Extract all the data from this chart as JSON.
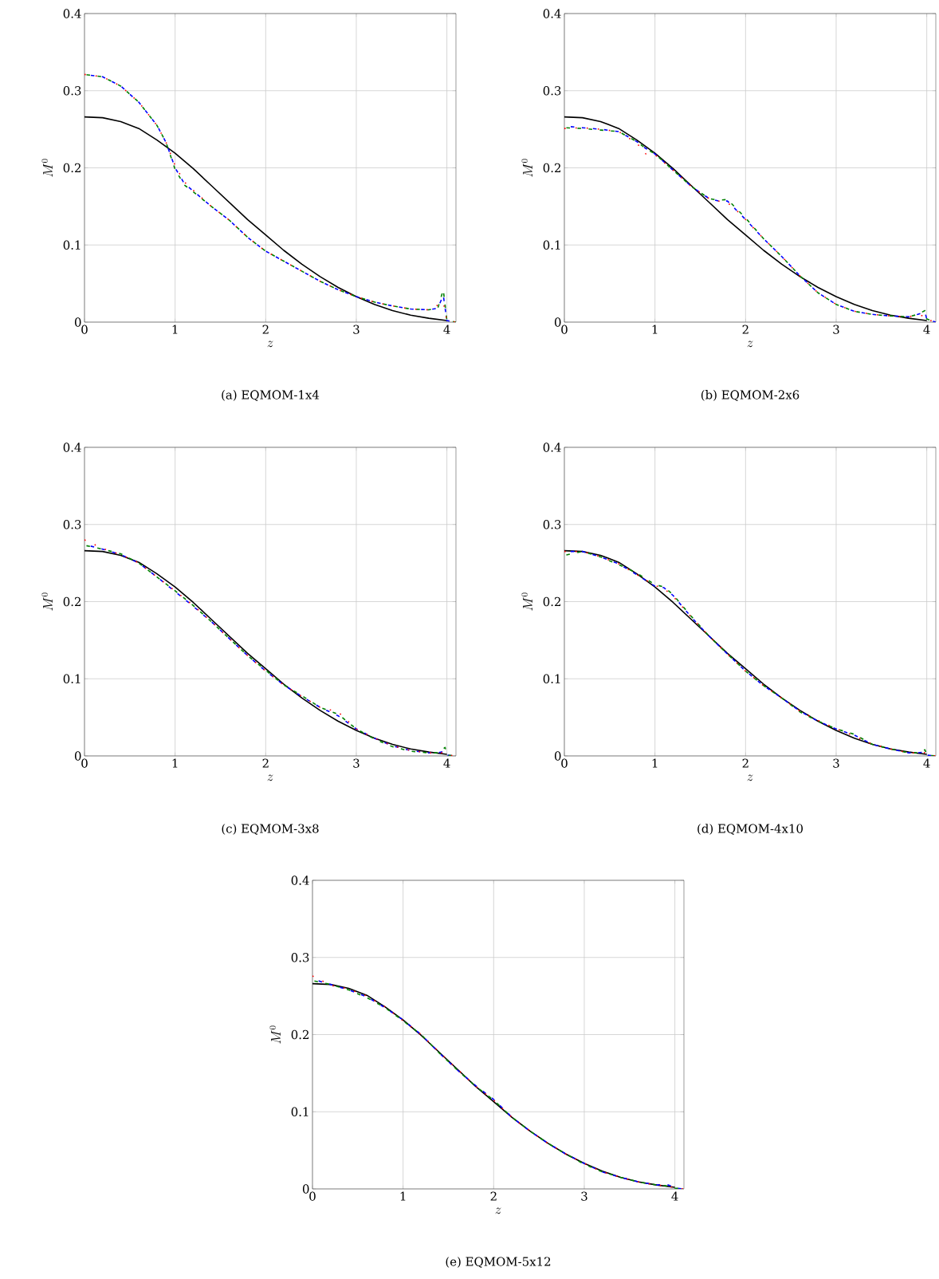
{
  "chart_data": [
    {
      "type": "line",
      "title": "(a) EQMOM-1x4",
      "xlabel": "z",
      "ylabel": "M^{0}",
      "xlim": [
        0,
        4.1
      ],
      "ylim": [
        0,
        0.4
      ],
      "xticks": [
        0,
        1,
        2,
        3,
        4
      ],
      "yticks": [
        0,
        0.1,
        0.2,
        0.3,
        0.4
      ],
      "grid": true,
      "x": [
        0,
        0.2,
        0.4,
        0.6,
        0.8,
        0.9,
        1.0,
        1.1,
        1.2,
        1.4,
        1.6,
        1.8,
        2.0,
        2.2,
        2.4,
        2.6,
        2.8,
        3.0,
        3.2,
        3.4,
        3.6,
        3.8,
        3.9,
        3.96,
        4.0,
        4.1
      ],
      "series": [
        {
          "color": "#000000",
          "line_style": "solid",
          "x": [
            0,
            0.2,
            0.4,
            0.6,
            0.8,
            1.0,
            1.2,
            1.4,
            1.6,
            1.8,
            2.0,
            2.2,
            2.4,
            2.6,
            2.8,
            3.0,
            3.2,
            3.4,
            3.6,
            3.8,
            4.0
          ],
          "values": [
            0.266,
            0.265,
            0.26,
            0.251,
            0.236,
            0.219,
            0.199,
            0.177,
            0.155,
            0.133,
            0.113,
            0.093,
            0.075,
            0.059,
            0.045,
            0.033,
            0.023,
            0.015,
            0.009,
            0.005,
            0.002
          ]
        },
        {
          "color": "#ff0000",
          "line_style": "dotted",
          "values": [
            0.321,
            0.318,
            0.306,
            0.285,
            0.255,
            0.233,
            0.203,
            0.182,
            0.171,
            0.15,
            0.132,
            0.11,
            0.092,
            0.079,
            0.066,
            0.053,
            0.042,
            0.033,
            0.026,
            0.021,
            0.017,
            0.016,
            0.022,
            0.026,
            0.002,
            0
          ]
        },
        {
          "color": "#0000ff",
          "line_style": "dashed",
          "values": [
            0.321,
            0.318,
            0.306,
            0.285,
            0.255,
            0.233,
            0.2,
            0.18,
            0.17,
            0.15,
            0.132,
            0.11,
            0.092,
            0.079,
            0.066,
            0.053,
            0.042,
            0.033,
            0.026,
            0.021,
            0.017,
            0.016,
            0.018,
            0.035,
            0.002,
            0
          ]
        },
        {
          "color": "#008000",
          "line_style": "dashed",
          "values": [
            0.321,
            0.318,
            0.306,
            0.285,
            0.255,
            0.233,
            0.198,
            0.178,
            0.169,
            0.15,
            0.132,
            0.11,
            0.092,
            0.079,
            0.066,
            0.053,
            0.042,
            0.033,
            0.026,
            0.021,
            0.017,
            0.016,
            0.018,
            0.042,
            0.002,
            0
          ]
        }
      ]
    },
    {
      "type": "line",
      "title": "(b) EQMOM-2x6",
      "xlabel": "z",
      "ylabel": "M^{0}",
      "xlim": [
        0,
        4.1
      ],
      "ylim": [
        0,
        0.4
      ],
      "xticks": [
        0,
        1,
        2,
        3,
        4
      ],
      "yticks": [
        0,
        0.1,
        0.2,
        0.3,
        0.4
      ],
      "grid": true,
      "x": [
        0,
        0.2,
        0.4,
        0.6,
        0.8,
        0.9,
        1.0,
        1.2,
        1.4,
        1.6,
        1.7,
        1.8,
        1.9,
        2.0,
        2.2,
        2.4,
        2.6,
        2.8,
        3.0,
        3.2,
        3.4,
        3.6,
        3.8,
        3.9,
        3.98,
        4.0,
        4.1
      ],
      "series": [
        {
          "color": "#000000",
          "line_style": "solid",
          "x": [
            0,
            0.2,
            0.4,
            0.6,
            0.8,
            1.0,
            1.2,
            1.4,
            1.6,
            1.8,
            2.0,
            2.2,
            2.4,
            2.6,
            2.8,
            3.0,
            3.2,
            3.4,
            3.6,
            3.8,
            4.0
          ],
          "values": [
            0.266,
            0.265,
            0.26,
            0.251,
            0.236,
            0.219,
            0.199,
            0.177,
            0.155,
            0.133,
            0.113,
            0.093,
            0.075,
            0.059,
            0.045,
            0.033,
            0.023,
            0.015,
            0.009,
            0.005,
            0.002
          ]
        },
        {
          "color": "#ff0000",
          "line_style": "dotted",
          "values": [
            0.251,
            0.252,
            0.25,
            0.247,
            0.232,
            0.218,
            0.217,
            0.197,
            0.176,
            0.16,
            0.157,
            0.155,
            0.145,
            0.133,
            0.108,
            0.085,
            0.06,
            0.038,
            0.023,
            0.014,
            0.01,
            0.008,
            0.007,
            0.009,
            0.008,
            0.004,
            0
          ]
        },
        {
          "color": "#0000ff",
          "line_style": "dashed",
          "values": [
            0.254,
            0.252,
            0.25,
            0.247,
            0.234,
            0.225,
            0.218,
            0.197,
            0.176,
            0.16,
            0.157,
            0.157,
            0.145,
            0.133,
            0.108,
            0.085,
            0.06,
            0.038,
            0.023,
            0.014,
            0.01,
            0.008,
            0.007,
            0.01,
            0.013,
            0.004,
            0
          ]
        },
        {
          "color": "#008000",
          "line_style": "dashed",
          "values": [
            0.252,
            0.251,
            0.249,
            0.247,
            0.234,
            0.225,
            0.218,
            0.197,
            0.176,
            0.16,
            0.158,
            0.159,
            0.147,
            0.135,
            0.108,
            0.085,
            0.06,
            0.038,
            0.023,
            0.014,
            0.01,
            0.008,
            0.007,
            0.01,
            0.015,
            0.004,
            0
          ]
        }
      ]
    },
    {
      "type": "line",
      "title": "(c) EQMOM-3x8",
      "xlabel": "z",
      "ylabel": "M^{0}",
      "xlim": [
        0,
        4.1
      ],
      "ylim": [
        0,
        0.4
      ],
      "xticks": [
        0,
        1,
        2,
        3,
        4
      ],
      "yticks": [
        0,
        0.1,
        0.2,
        0.3,
        0.4
      ],
      "grid": true,
      "x": [
        0,
        0.2,
        0.4,
        0.6,
        0.8,
        1.0,
        1.2,
        1.4,
        1.6,
        1.8,
        2.0,
        2.2,
        2.4,
        2.6,
        2.8,
        3.0,
        3.2,
        3.4,
        3.6,
        3.8,
        3.9,
        3.98,
        4.0,
        4.1
      ],
      "series": [
        {
          "color": "#000000",
          "line_style": "solid",
          "x": [
            0,
            0.2,
            0.4,
            0.6,
            0.8,
            1.0,
            1.2,
            1.4,
            1.6,
            1.8,
            2.0,
            2.2,
            2.4,
            2.6,
            2.8,
            3.0,
            3.2,
            3.4,
            3.6,
            3.8,
            4.0
          ],
          "values": [
            0.266,
            0.265,
            0.26,
            0.251,
            0.236,
            0.219,
            0.199,
            0.177,
            0.155,
            0.133,
            0.113,
            0.093,
            0.075,
            0.059,
            0.045,
            0.033,
            0.023,
            0.015,
            0.009,
            0.005,
            0.002
          ]
        },
        {
          "color": "#ff0000",
          "line_style": "dotted",
          "values": [
            0.28,
            0.269,
            0.261,
            0.25,
            0.232,
            0.214,
            0.195,
            0.174,
            0.152,
            0.13,
            0.11,
            0.092,
            0.077,
            0.063,
            0.057,
            0.035,
            0.023,
            0.013,
            0.007,
            0.004,
            0.004,
            0.004,
            0.001,
            0
          ]
        },
        {
          "color": "#0000ff",
          "line_style": "dashed",
          "values": [
            0.274,
            0.268,
            0.261,
            0.25,
            0.232,
            0.213,
            0.194,
            0.174,
            0.152,
            0.13,
            0.11,
            0.092,
            0.077,
            0.063,
            0.052,
            0.035,
            0.023,
            0.013,
            0.007,
            0.004,
            0.004,
            0.006,
            0.001,
            0
          ]
        },
        {
          "color": "#008000",
          "line_style": "dashed",
          "values": [
            0.273,
            0.268,
            0.262,
            0.25,
            0.232,
            0.214,
            0.195,
            0.174,
            0.152,
            0.13,
            0.111,
            0.092,
            0.078,
            0.063,
            0.054,
            0.035,
            0.022,
            0.012,
            0.006,
            0.004,
            0.004,
            0.011,
            0.001,
            0
          ]
        }
      ]
    },
    {
      "type": "line",
      "title": "(d) EQMOM-4x10",
      "xlabel": "z",
      "ylabel": "M^{0}",
      "xlim": [
        0,
        4.1
      ],
      "ylim": [
        0,
        0.4
      ],
      "xticks": [
        0,
        1,
        2,
        3,
        4
      ],
      "yticks": [
        0,
        0.1,
        0.2,
        0.3,
        0.4
      ],
      "grid": true,
      "x": [
        0,
        0.2,
        0.4,
        0.6,
        0.8,
        1.0,
        1.1,
        1.2,
        1.4,
        1.6,
        1.8,
        2.0,
        2.2,
        2.4,
        2.6,
        2.8,
        3.0,
        3.2,
        3.4,
        3.6,
        3.8,
        3.9,
        3.98,
        4.0,
        4.1
      ],
      "series": [
        {
          "color": "#000000",
          "line_style": "solid",
          "x": [
            0,
            0.2,
            0.4,
            0.6,
            0.8,
            1.0,
            1.2,
            1.4,
            1.6,
            1.8,
            2.0,
            2.2,
            2.4,
            2.6,
            2.8,
            3.0,
            3.2,
            3.4,
            3.6,
            3.8,
            4.0
          ],
          "values": [
            0.266,
            0.265,
            0.26,
            0.251,
            0.236,
            0.219,
            0.199,
            0.177,
            0.155,
            0.133,
            0.113,
            0.093,
            0.075,
            0.059,
            0.045,
            0.033,
            0.023,
            0.015,
            0.009,
            0.005,
            0.002
          ]
        },
        {
          "color": "#ff0000",
          "line_style": "dotted",
          "values": [
            0.265,
            0.265,
            0.258,
            0.249,
            0.235,
            0.221,
            0.217,
            0.207,
            0.18,
            0.155,
            0.132,
            0.11,
            0.091,
            0.075,
            0.058,
            0.046,
            0.035,
            0.026,
            0.015,
            0.009,
            0.004,
            0.004,
            0.004,
            0.001,
            0
          ]
        },
        {
          "color": "#0000ff",
          "line_style": "dashed",
          "values": [
            0.265,
            0.265,
            0.258,
            0.249,
            0.235,
            0.22,
            0.218,
            0.208,
            0.18,
            0.155,
            0.132,
            0.11,
            0.091,
            0.075,
            0.058,
            0.045,
            0.035,
            0.027,
            0.015,
            0.009,
            0.004,
            0.004,
            0.005,
            0.001,
            0
          ]
        },
        {
          "color": "#008000",
          "line_style": "dashed",
          "values": [
            0.26,
            0.265,
            0.258,
            0.248,
            0.237,
            0.222,
            0.219,
            0.209,
            0.181,
            0.155,
            0.132,
            0.11,
            0.091,
            0.075,
            0.057,
            0.045,
            0.035,
            0.028,
            0.015,
            0.009,
            0.004,
            0.004,
            0.008,
            0.001,
            0
          ]
        }
      ]
    },
    {
      "type": "line",
      "title": "(e) EQMOM-5x12",
      "xlabel": "z",
      "ylabel": "M^{0}",
      "xlim": [
        0,
        4.1
      ],
      "ylim": [
        0,
        0.4
      ],
      "xticks": [
        0,
        1,
        2,
        3,
        4
      ],
      "yticks": [
        0,
        0.1,
        0.2,
        0.3,
        0.4
      ],
      "grid": true,
      "x": [
        0,
        0.2,
        0.4,
        0.6,
        0.8,
        1.0,
        1.2,
        1.4,
        1.6,
        1.8,
        2.0,
        2.2,
        2.4,
        2.6,
        2.8,
        3.0,
        3.2,
        3.4,
        3.6,
        3.8,
        3.9,
        3.98,
        4.0,
        4.1
      ],
      "series": [
        {
          "color": "#000000",
          "line_style": "solid",
          "x": [
            0,
            0.2,
            0.4,
            0.6,
            0.8,
            1.0,
            1.2,
            1.4,
            1.6,
            1.8,
            2.0,
            2.2,
            2.4,
            2.6,
            2.8,
            3.0,
            3.2,
            3.4,
            3.6,
            3.8,
            4.0
          ],
          "values": [
            0.266,
            0.265,
            0.26,
            0.251,
            0.236,
            0.219,
            0.199,
            0.177,
            0.155,
            0.133,
            0.113,
            0.093,
            0.075,
            0.059,
            0.045,
            0.033,
            0.023,
            0.015,
            0.009,
            0.005,
            0.002
          ]
        },
        {
          "color": "#ff0000",
          "line_style": "dotted",
          "values": [
            0.276,
            0.264,
            0.259,
            0.25,
            0.236,
            0.218,
            0.2,
            0.177,
            0.155,
            0.133,
            0.115,
            0.093,
            0.075,
            0.059,
            0.045,
            0.033,
            0.022,
            0.015,
            0.009,
            0.005,
            0.004,
            0.002,
            0.001,
            0
          ]
        },
        {
          "color": "#0000ff",
          "line_style": "dashed",
          "values": [
            0.272,
            0.265,
            0.258,
            0.249,
            0.235,
            0.219,
            0.2,
            0.176,
            0.154,
            0.134,
            0.116,
            0.093,
            0.075,
            0.059,
            0.045,
            0.033,
            0.022,
            0.015,
            0.009,
            0.005,
            0.006,
            0.003,
            0.001,
            0
          ]
        },
        {
          "color": "#008000",
          "line_style": "dashed",
          "values": [
            0.27,
            0.265,
            0.258,
            0.248,
            0.235,
            0.218,
            0.2,
            0.176,
            0.154,
            0.133,
            0.115,
            0.093,
            0.075,
            0.059,
            0.045,
            0.032,
            0.022,
            0.015,
            0.009,
            0.005,
            0.004,
            0.002,
            0.001,
            0
          ]
        }
      ]
    }
  ]
}
